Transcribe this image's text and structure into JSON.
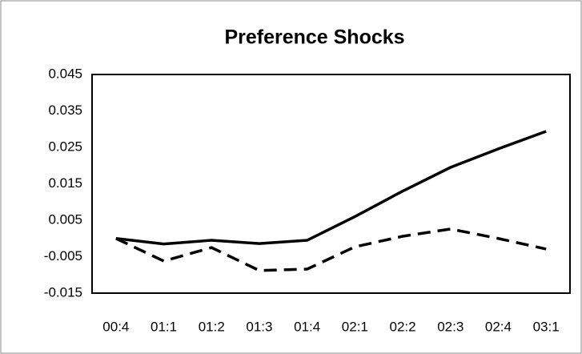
{
  "chart_data": {
    "type": "line",
    "title": "Preference Shocks",
    "categories": [
      "00:4",
      "01:1",
      "01:2",
      "01:3",
      "01:4",
      "02:1",
      "02:2",
      "02:3",
      "02:4",
      "03:1"
    ],
    "series": [
      {
        "color": "#000000",
        "dash": "solid",
        "values": [
          0.0,
          -0.0015,
          -0.0005,
          -0.0014,
          -0.0005,
          0.006,
          0.013,
          0.0195,
          0.0246,
          0.0294
        ]
      },
      {
        "color": "#000000",
        "dash": "dashed",
        "values": [
          0.0,
          -0.0062,
          -0.0025,
          -0.0088,
          -0.0084,
          -0.0023,
          0.0006,
          0.0026,
          0.0,
          -0.0029
        ]
      }
    ],
    "ylim": [
      -0.015,
      0.045
    ],
    "yticks": [
      -0.015,
      -0.005,
      0.005,
      0.015,
      0.025,
      0.035,
      0.045
    ],
    "grid": false
  }
}
